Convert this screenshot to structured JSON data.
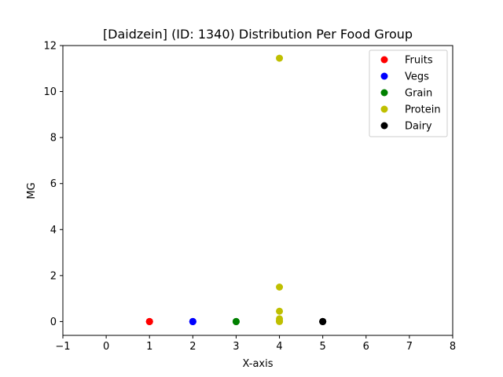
{
  "chart_data": {
    "type": "scatter",
    "title": "[Daidzein] (ID: 1340) Distribution Per Food Group",
    "xlabel": "X-axis",
    "ylabel": "MG",
    "xlim": [
      -1,
      8
    ],
    "ylim": [
      -0.6,
      12
    ],
    "xticks": [
      -1,
      0,
      1,
      2,
      3,
      4,
      5,
      6,
      7,
      8
    ],
    "yticks": [
      0,
      2,
      4,
      6,
      8,
      10,
      12
    ],
    "grid": false,
    "legend_position": "top-right",
    "series": [
      {
        "name": "Fruits",
        "color": "#ff0000",
        "x": [
          1,
          1,
          1
        ],
        "y": [
          0,
          0,
          0
        ]
      },
      {
        "name": "Vegs",
        "color": "#0000ff",
        "x": [
          2,
          2,
          2
        ],
        "y": [
          0,
          0,
          0
        ]
      },
      {
        "name": "Grain",
        "color": "#008000",
        "x": [
          3,
          3,
          3
        ],
        "y": [
          0,
          0,
          0
        ]
      },
      {
        "name": "Protein",
        "color": "#bfbf00",
        "x": [
          4,
          4,
          4,
          4,
          4,
          4,
          4
        ],
        "y": [
          11.45,
          1.5,
          0.45,
          0.12,
          0.03,
          0.01,
          0
        ]
      },
      {
        "name": "Dairy",
        "color": "#000000",
        "x": [
          5,
          5,
          5
        ],
        "y": [
          0,
          0,
          0
        ]
      }
    ]
  }
}
